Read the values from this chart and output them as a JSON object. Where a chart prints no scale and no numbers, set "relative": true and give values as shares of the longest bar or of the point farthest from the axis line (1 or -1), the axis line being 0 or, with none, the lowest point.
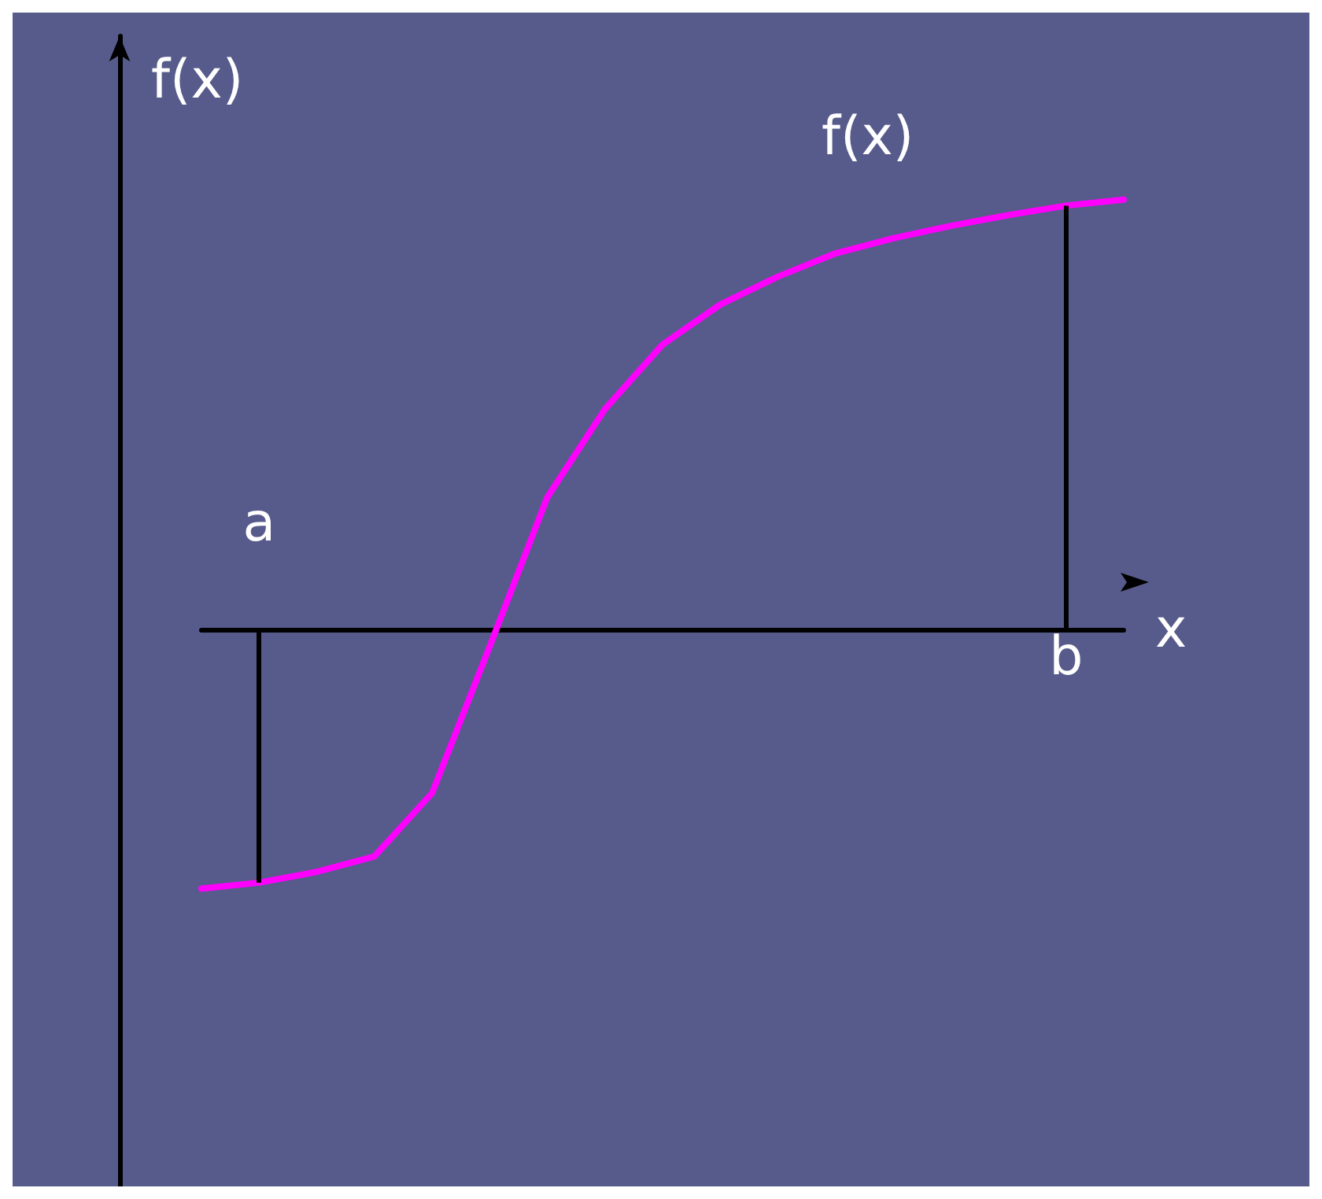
{
  "chart_data": {
    "type": "line",
    "relative": true,
    "ylabel": "f(x)",
    "xlabel": "x",
    "categories": [
      null,
      "a",
      null,
      null,
      null,
      null,
      null,
      null,
      null,
      null,
      null,
      null,
      null,
      null,
      null,
      "b",
      null
    ],
    "series": [
      {
        "name": "f(x)",
        "color": "#ff00ff",
        "values": [
          -0.602,
          -0.588,
          -0.563,
          -0.527,
          -0.38,
          -0.039,
          0.308,
          0.513,
          0.663,
          0.756,
          0.821,
          0.875,
          0.91,
          0.939,
          0.964,
          0.986,
          1
        ]
      }
    ],
    "ref_lines": [
      {
        "axis": "x",
        "value": "a",
        "color": "#000000"
      },
      {
        "axis": "x",
        "value": "b",
        "color": "#000000"
      }
    ],
    "grid": false,
    "legend": false,
    "marker": "none",
    "line_style": "solid"
  }
}
